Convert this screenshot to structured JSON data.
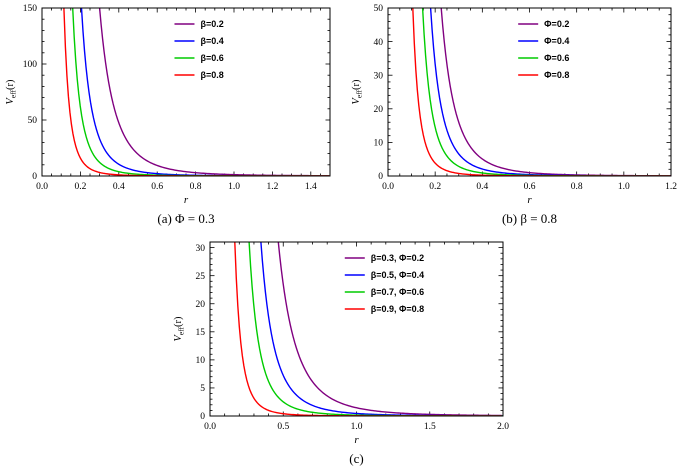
{
  "page": {
    "background": "#ffffff"
  },
  "chart_data": [
    {
      "id": "a",
      "type": "line",
      "caption": "(a) Φ = 0.3",
      "xlabel": "r",
      "ylabel": {
        "base": "V",
        "sub": "eff",
        "rest": "(r)"
      },
      "xlim": [
        0,
        1.5
      ],
      "ylim": [
        0,
        150
      ],
      "xticks": [
        "0.0",
        "0.2",
        "0.4",
        "0.6",
        "0.8",
        "1.0",
        "1.2",
        "1.4"
      ],
      "yticks": [
        "0",
        "50",
        "100",
        "150"
      ],
      "x_minor_div": 4,
      "y_minor_div": 5,
      "grid": false,
      "legend_position": "upper-right-inside",
      "series": [
        {
          "label": "β=0.2",
          "color": "#800080",
          "model": "V(r)=(r0/r)^4",
          "r0": 1.05,
          "exponent": 4,
          "samples": [
            [
              0.3,
              150
            ],
            [
              0.35,
              81.0
            ],
            [
              0.4,
              47.6
            ],
            [
              0.5,
              19.4
            ],
            [
              0.6,
              9.4
            ],
            [
              0.7,
              5.1
            ],
            [
              0.8,
              3.0
            ],
            [
              1.0,
              1.22
            ],
            [
              1.2,
              0.59
            ],
            [
              1.5,
              0.24
            ]
          ]
        },
        {
          "label": "β=0.4",
          "color": "#0000FF",
          "model": "V(r)=(r0/r)^4",
          "r0": 0.72,
          "exponent": 4,
          "samples": [
            [
              0.21,
              138
            ],
            [
              0.25,
              68.8
            ],
            [
              0.3,
              33.2
            ],
            [
              0.4,
              10.5
            ],
            [
              0.5,
              4.3
            ],
            [
              0.6,
              2.07
            ],
            [
              0.8,
              0.66
            ],
            [
              1.0,
              0.27
            ],
            [
              1.5,
              0.05
            ]
          ]
        },
        {
          "label": "β=0.6",
          "color": "#00CC00",
          "model": "V(r)=(r0/r)^4",
          "r0": 0.56,
          "exponent": 4,
          "samples": [
            [
              0.16,
              150
            ],
            [
              0.2,
              61.5
            ],
            [
              0.25,
              25.2
            ],
            [
              0.3,
              12.1
            ],
            [
              0.4,
              3.84
            ],
            [
              0.5,
              1.57
            ],
            [
              0.7,
              0.41
            ],
            [
              1.0,
              0.1
            ],
            [
              1.5,
              0.02
            ]
          ]
        },
        {
          "label": "β=0.8",
          "color": "#FF0000",
          "model": "V(r)=(r0/r)^4",
          "r0": 0.4,
          "exponent": 4,
          "samples": [
            [
              0.12,
              123
            ],
            [
              0.15,
              50.6
            ],
            [
              0.2,
              16.0
            ],
            [
              0.25,
              6.55
            ],
            [
              0.3,
              3.16
            ],
            [
              0.4,
              1.0
            ],
            [
              0.6,
              0.2
            ],
            [
              1.0,
              0.03
            ],
            [
              1.5,
              0.01
            ]
          ]
        }
      ]
    },
    {
      "id": "b",
      "type": "line",
      "caption": "(b) β = 0.8",
      "xlabel": "r",
      "ylabel": {
        "base": "V",
        "sub": "eff",
        "rest": "(r)"
      },
      "xlim": [
        0,
        1.2
      ],
      "ylim": [
        0,
        50
      ],
      "xticks": [
        "0.0",
        "0.2",
        "0.4",
        "0.6",
        "0.8",
        "1.0",
        "1.2"
      ],
      "yticks": [
        "0",
        "10",
        "20",
        "30",
        "40",
        "50"
      ],
      "x_minor_div": 4,
      "y_minor_div": 5,
      "grid": false,
      "legend_position": "upper-right-inside",
      "series": [
        {
          "label": "Φ=0.2",
          "color": "#800080",
          "model": "V(r)=(r0/r)^4",
          "r0": 0.6,
          "exponent": 4,
          "samples": [
            [
              0.23,
              46.3
            ],
            [
              0.25,
              33.2
            ],
            [
              0.3,
              16.0
            ],
            [
              0.4,
              5.06
            ],
            [
              0.5,
              2.07
            ],
            [
              0.6,
              1.0
            ],
            [
              0.8,
              0.32
            ],
            [
              1.0,
              0.13
            ],
            [
              1.2,
              0.06
            ]
          ]
        },
        {
          "label": "Φ=0.4",
          "color": "#0000FF",
          "model": "V(r)=(r0/r)^4",
          "r0": 0.48,
          "exponent": 4,
          "samples": [
            [
              0.19,
              40.7
            ],
            [
              0.25,
              13.6
            ],
            [
              0.3,
              6.55
            ],
            [
              0.4,
              2.07
            ],
            [
              0.5,
              0.85
            ],
            [
              0.7,
              0.22
            ],
            [
              1.0,
              0.05
            ],
            [
              1.2,
              0.03
            ]
          ]
        },
        {
          "label": "Φ=0.6",
          "color": "#00CC00",
          "model": "V(r)=(r0/r)^4",
          "r0": 0.39,
          "exponent": 4,
          "samples": [
            [
              0.15,
              45.7
            ],
            [
              0.2,
              14.5
            ],
            [
              0.25,
              5.92
            ],
            [
              0.3,
              2.86
            ],
            [
              0.4,
              0.9
            ],
            [
              0.6,
              0.18
            ],
            [
              1.0,
              0.02
            ]
          ]
        },
        {
          "label": "Φ=0.8",
          "color": "#FF0000",
          "model": "V(r)=(r0/r)^4",
          "r0": 0.28,
          "exponent": 4,
          "samples": [
            [
              0.11,
              41.9
            ],
            [
              0.15,
              12.1
            ],
            [
              0.2,
              3.84
            ],
            [
              0.3,
              0.76
            ],
            [
              0.4,
              0.24
            ],
            [
              0.6,
              0.05
            ],
            [
              1.0,
              0.01
            ]
          ]
        }
      ]
    },
    {
      "id": "c",
      "type": "line",
      "caption": "(c)",
      "xlabel": "r",
      "ylabel": {
        "base": "V",
        "sub": "eff",
        "rest": "(r)"
      },
      "xlim": [
        0,
        2.0
      ],
      "ylim": [
        0,
        31
      ],
      "xticks": [
        "0.0",
        "0.5",
        "1.0",
        "1.5",
        "2.0"
      ],
      "yticks": [
        "0",
        "5",
        "10",
        "15",
        "20",
        "25",
        "30"
      ],
      "x_minor_div": 5,
      "y_minor_div": 5,
      "grid": false,
      "legend_position": "upper-right-inside",
      "series": [
        {
          "label": "β=0.3, Φ=0.2",
          "color": "#800080",
          "model": "V(r)=(r0/r)^4",
          "r0": 1.1,
          "exponent": 4,
          "samples": [
            [
              0.47,
              30.0
            ],
            [
              0.55,
              16.0
            ],
            [
              0.65,
              8.2
            ],
            [
              0.8,
              3.57
            ],
            [
              1.0,
              1.46
            ],
            [
              1.25,
              0.6
            ],
            [
              1.5,
              0.29
            ],
            [
              2.0,
              0.09
            ]
          ]
        },
        {
          "label": "β=0.5, Φ=0.4",
          "color": "#0000FF",
          "model": "V(r)=(r0/r)^4",
          "r0": 0.82,
          "exponent": 4,
          "samples": [
            [
              0.35,
              30.1
            ],
            [
              0.4,
              17.7
            ],
            [
              0.5,
              7.23
            ],
            [
              0.6,
              3.49
            ],
            [
              0.8,
              1.1
            ],
            [
              1.0,
              0.45
            ],
            [
              1.5,
              0.09
            ],
            [
              2.0,
              0.03
            ]
          ]
        },
        {
          "label": "β=0.7, Φ=0.6",
          "color": "#00CC00",
          "model": "V(r)=(r0/r)^4",
          "r0": 0.63,
          "exponent": 4,
          "samples": [
            [
              0.27,
              29.6
            ],
            [
              0.3,
              19.4
            ],
            [
              0.4,
              6.15
            ],
            [
              0.5,
              2.52
            ],
            [
              0.6,
              1.22
            ],
            [
              0.8,
              0.38
            ],
            [
              1.0,
              0.16
            ],
            [
              1.5,
              0.03
            ]
          ]
        },
        {
          "label": "β=0.9, Φ=0.8",
          "color": "#FF0000",
          "model": "V(r)=(r0/r)^4",
          "r0": 0.4,
          "exponent": 4,
          "samples": [
            [
              0.17,
              31.0
            ],
            [
              0.2,
              16.0
            ],
            [
              0.25,
              6.55
            ],
            [
              0.3,
              3.16
            ],
            [
              0.4,
              1.0
            ],
            [
              0.5,
              0.41
            ],
            [
              0.7,
              0.11
            ],
            [
              1.0,
              0.03
            ]
          ]
        }
      ]
    }
  ]
}
